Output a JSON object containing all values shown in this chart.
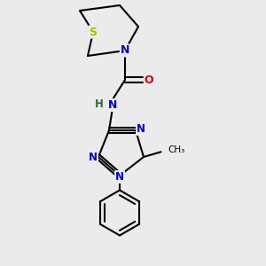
{
  "background_color": "#ebebeb",
  "bond_color": "#000000",
  "atom_colors": {
    "S": "#b8b800",
    "N": "#0000cc",
    "O": "#cc0000",
    "H": "#336633",
    "C": "#000000"
  },
  "figsize": [
    3.0,
    3.0
  ],
  "dpi": 100
}
